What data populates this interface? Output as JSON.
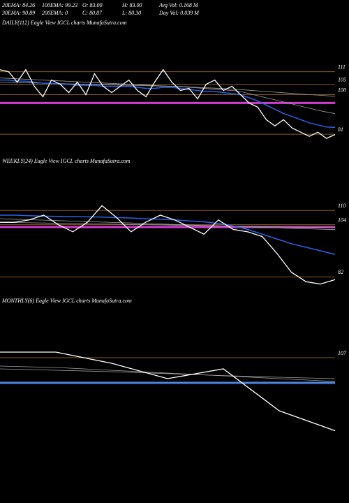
{
  "header": {
    "stats": [
      [
        "20EMA: 84.26",
        "100EMA: 99.23",
        "O: 83.00",
        "H: 83.00",
        "Avg Vol: 0.168 M"
      ],
      [
        "30EMA: 90.89",
        "200EMA: 0",
        "C: 80.87",
        "L: 80.30",
        "Day Vol: 0.039 M"
      ]
    ]
  },
  "chart_data": [
    {
      "type": "line",
      "title": "DAILY(112) Eagle  View  IGCL  charts MunafaSutra.com",
      "ylim": [
        70,
        132
      ],
      "yticks": [
        111,
        105,
        100,
        81
      ],
      "grid_color": "#8a5a1e",
      "hlines": [
        {
          "value": 96,
          "color": "#d23cd2"
        }
      ],
      "series": [
        {
          "color": "#a0a0a0",
          "values": [
            108,
            107.8,
            107.6,
            107.4,
            107.2,
            107,
            106.8,
            106.6,
            106.4,
            106.2,
            106,
            105.8,
            105.6,
            105.4,
            105.2,
            105,
            104.8,
            104.6,
            104.4,
            104.2,
            104,
            103.8,
            103.5,
            103.2,
            102.9,
            102.6,
            102.3,
            102,
            101.5,
            100.5,
            99.5,
            98.5,
            97.5,
            96.5,
            95.5,
            94.5,
            93.5,
            92.5,
            91.7,
            90.89
          ]
        },
        {
          "color": "#a0a0a0",
          "values": [
            106,
            105.9,
            105.8,
            105.7,
            105.6,
            105.5,
            105.4,
            105.3,
            105.2,
            105.1,
            105,
            104.9,
            104.8,
            104.7,
            104.6,
            104.5,
            104.4,
            104.3,
            104.2,
            104.1,
            104,
            103.9,
            103.7,
            103.5,
            103.3,
            103.1,
            102.9,
            102.7,
            102.4,
            102.1,
            101.8,
            101.5,
            101.2,
            100.9,
            100.6,
            100.3,
            100,
            99.8,
            99.5,
            99.23
          ]
        },
        {
          "color": "#2a62e6",
          "values": [
            107,
            107,
            106.5,
            106.5,
            106,
            105.5,
            105.5,
            105,
            105,
            104.5,
            104.5,
            104.5,
            104,
            104,
            104,
            104,
            103.5,
            103,
            103,
            103.5,
            103.5,
            103,
            102.5,
            102,
            101.5,
            101.5,
            101,
            100.5,
            100,
            98.5,
            97,
            95,
            93,
            91,
            89.5,
            88,
            86.5,
            85.5,
            84.5,
            84.26
          ]
        },
        {
          "color": "#ffffff",
          "values": [
            112,
            111,
            106,
            112,
            104,
            99,
            107,
            105,
            101,
            106,
            100,
            110,
            104,
            101,
            104,
            107,
            102,
            99,
            106,
            112,
            106,
            102,
            103,
            98,
            105,
            107,
            102,
            104,
            100,
            96,
            94,
            88,
            85,
            88,
            84,
            82,
            80,
            82,
            79,
            80.87
          ]
        }
      ]
    },
    {
      "type": "line",
      "title": "WEEKLY(24) Eagle  View  IGCL  charts MunafaSutra.com",
      "ylim": [
        78,
        128
      ],
      "yticks": [
        110,
        104,
        82
      ],
      "grid_color": "#8a5a1e",
      "hlines": [
        {
          "value": 103,
          "color": "#d23cd2"
        }
      ],
      "series": [
        {
          "color": "#a0a0a0",
          "values": [
            106.5,
            106.3,
            106.1,
            105.9,
            105.7,
            105.5,
            105.3,
            105.1,
            104.9,
            104.7,
            104.5,
            104.3,
            104.1,
            103.9,
            103.7,
            103.5,
            103.3,
            103.1,
            102.9,
            102.7,
            102.5,
            102.3,
            102.1,
            101.9
          ]
        },
        {
          "color": "#a0a0a0",
          "values": [
            105,
            104.9,
            104.8,
            104.7,
            104.6,
            104.5,
            104.4,
            104.3,
            104.2,
            104.1,
            104,
            103.9,
            103.8,
            103.7,
            103.6,
            103.5,
            103.4,
            103.3,
            103.2,
            103.1,
            103,
            102.9,
            102.8,
            102.7
          ]
        },
        {
          "color": "#2a62e6",
          "values": [
            108,
            108,
            107.8,
            107.6,
            107.5,
            107.4,
            107.3,
            107.2,
            107,
            106.8,
            106.5,
            106.3,
            106,
            105.6,
            105.2,
            104.5,
            103.5,
            102,
            100,
            98,
            96,
            94.5,
            93,
            91.5
          ]
        },
        {
          "color": "#ffffff",
          "values": [
            105,
            105,
            106,
            108,
            104,
            101,
            105,
            112,
            107,
            101,
            105,
            108,
            106,
            103,
            100,
            106,
            102,
            101,
            99,
            92,
            84,
            80,
            79,
            80.87
          ]
        }
      ]
    },
    {
      "type": "line",
      "title": "MONTHLY(6) Eagle  View  IGCL  charts MunafaSutra.com",
      "ylim": [
        60,
        125
      ],
      "yticks": [
        107
      ],
      "grid_color": "#8a5a1e",
      "hlines": [
        {
          "value": 98,
          "color": "#4a86e0"
        }
      ],
      "series": [
        {
          "color": "#a0a0a0",
          "values": [
            104,
            103.5,
            102.5,
            101.5,
            100.5,
            99.5,
            98.5
          ]
        },
        {
          "color": "#a0a0a0",
          "values": [
            103,
            102.5,
            102,
            101.3,
            100.6,
            100,
            99.5
          ]
        },
        {
          "color": "#ffffff",
          "values": [
            109,
            109,
            105,
            99.5,
            103,
            88,
            80.87
          ]
        }
      ]
    }
  ]
}
